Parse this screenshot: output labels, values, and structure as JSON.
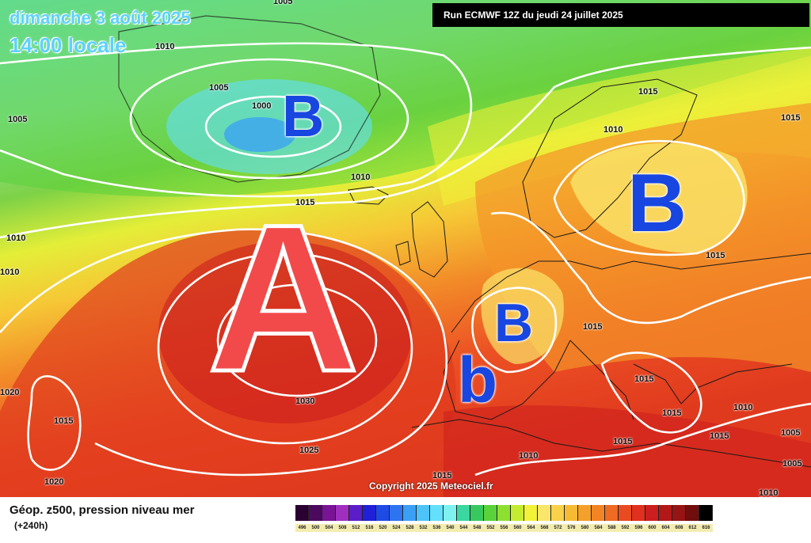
{
  "map": {
    "date_title": "dimanche 3 août 2025",
    "time_title": "14:00 locale",
    "run_banner": "Run ECMWF 12Z du jeudi 24 juillet 2025",
    "copyright": "Copyright 2025 Meteociel.fr",
    "pressure_labels": [
      "1005",
      "1010",
      "1005",
      "1000",
      "1005",
      "1010",
      "1015",
      "1010",
      "1010",
      "1015",
      "1015",
      "1015",
      "1015",
      "1010",
      "1020",
      "1015",
      "1030",
      "1025",
      "1020",
      "1015",
      "1010",
      "1015",
      "1015",
      "1015",
      "1015",
      "1010",
      "1010",
      "1005",
      "1005"
    ],
    "systems": {
      "high": "A",
      "low_greenland": "B",
      "low_scandinavia": "B",
      "low_france": "B",
      "low_spain": "b"
    }
  },
  "legend": {
    "title": "Géop. z500, pression niveau mer",
    "horizon": "(+240h)",
    "scale": [
      {
        "value": "496",
        "color": "#2a0033"
      },
      {
        "value": "500",
        "color": "#4b0a5e"
      },
      {
        "value": "504",
        "color": "#7a1496"
      },
      {
        "value": "508",
        "color": "#a02fc0"
      },
      {
        "value": "512",
        "color": "#5a1ec8"
      },
      {
        "value": "516",
        "color": "#2020d8"
      },
      {
        "value": "520",
        "color": "#1e4be6"
      },
      {
        "value": "524",
        "color": "#2c74f0"
      },
      {
        "value": "528",
        "color": "#3aa0f6"
      },
      {
        "value": "532",
        "color": "#4cc4fa"
      },
      {
        "value": "536",
        "color": "#62e0fc"
      },
      {
        "value": "540",
        "color": "#7ef2f0"
      },
      {
        "value": "544",
        "color": "#3ad8a0"
      },
      {
        "value": "548",
        "color": "#38c860"
      },
      {
        "value": "552",
        "color": "#5ad23a"
      },
      {
        "value": "556",
        "color": "#8ee030"
      },
      {
        "value": "560",
        "color": "#c4ec30"
      },
      {
        "value": "564",
        "color": "#f2f238"
      },
      {
        "value": "568",
        "color": "#fae66a"
      },
      {
        "value": "572",
        "color": "#f8d24a"
      },
      {
        "value": "576",
        "color": "#f7bb33"
      },
      {
        "value": "580",
        "color": "#f5a02a"
      },
      {
        "value": "584",
        "color": "#f28424"
      },
      {
        "value": "588",
        "color": "#ef6a22"
      },
      {
        "value": "592",
        "color": "#ea4a20"
      },
      {
        "value": "596",
        "color": "#e0301e"
      },
      {
        "value": "600",
        "color": "#cc1e1e"
      },
      {
        "value": "604",
        "color": "#b21818"
      },
      {
        "value": "608",
        "color": "#961414"
      },
      {
        "value": "612",
        "color": "#700e0e"
      },
      {
        "value": "616",
        "color": "#000000"
      }
    ]
  }
}
